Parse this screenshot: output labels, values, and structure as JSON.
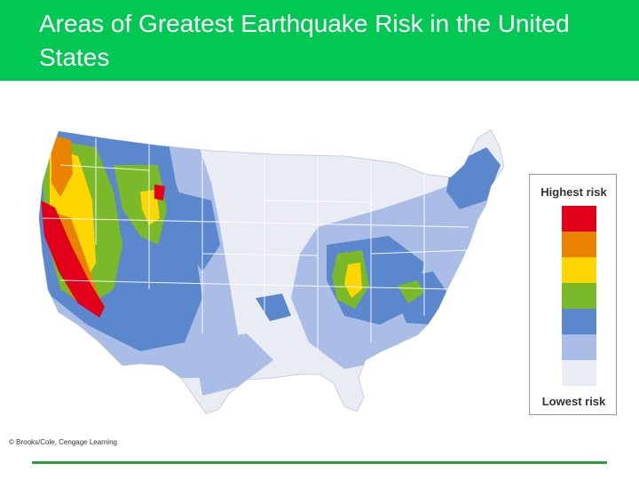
{
  "slide": {
    "title": "Areas of Greatest Earthquake Risk in the United States",
    "credit": "© Brooks/Cole, Cengage Learning"
  },
  "legend": {
    "top_label": "Highest risk",
    "bottom_label": "Lowest risk",
    "colors": [
      "#e3001b",
      "#e98300",
      "#ffd600",
      "#7ab929",
      "#5b87cc",
      "#a9bde6",
      "#e9ecf3"
    ]
  },
  "palette": {
    "header": "#00c853",
    "rule": "#2e9e3a",
    "state_border": "#ffffff"
  }
}
